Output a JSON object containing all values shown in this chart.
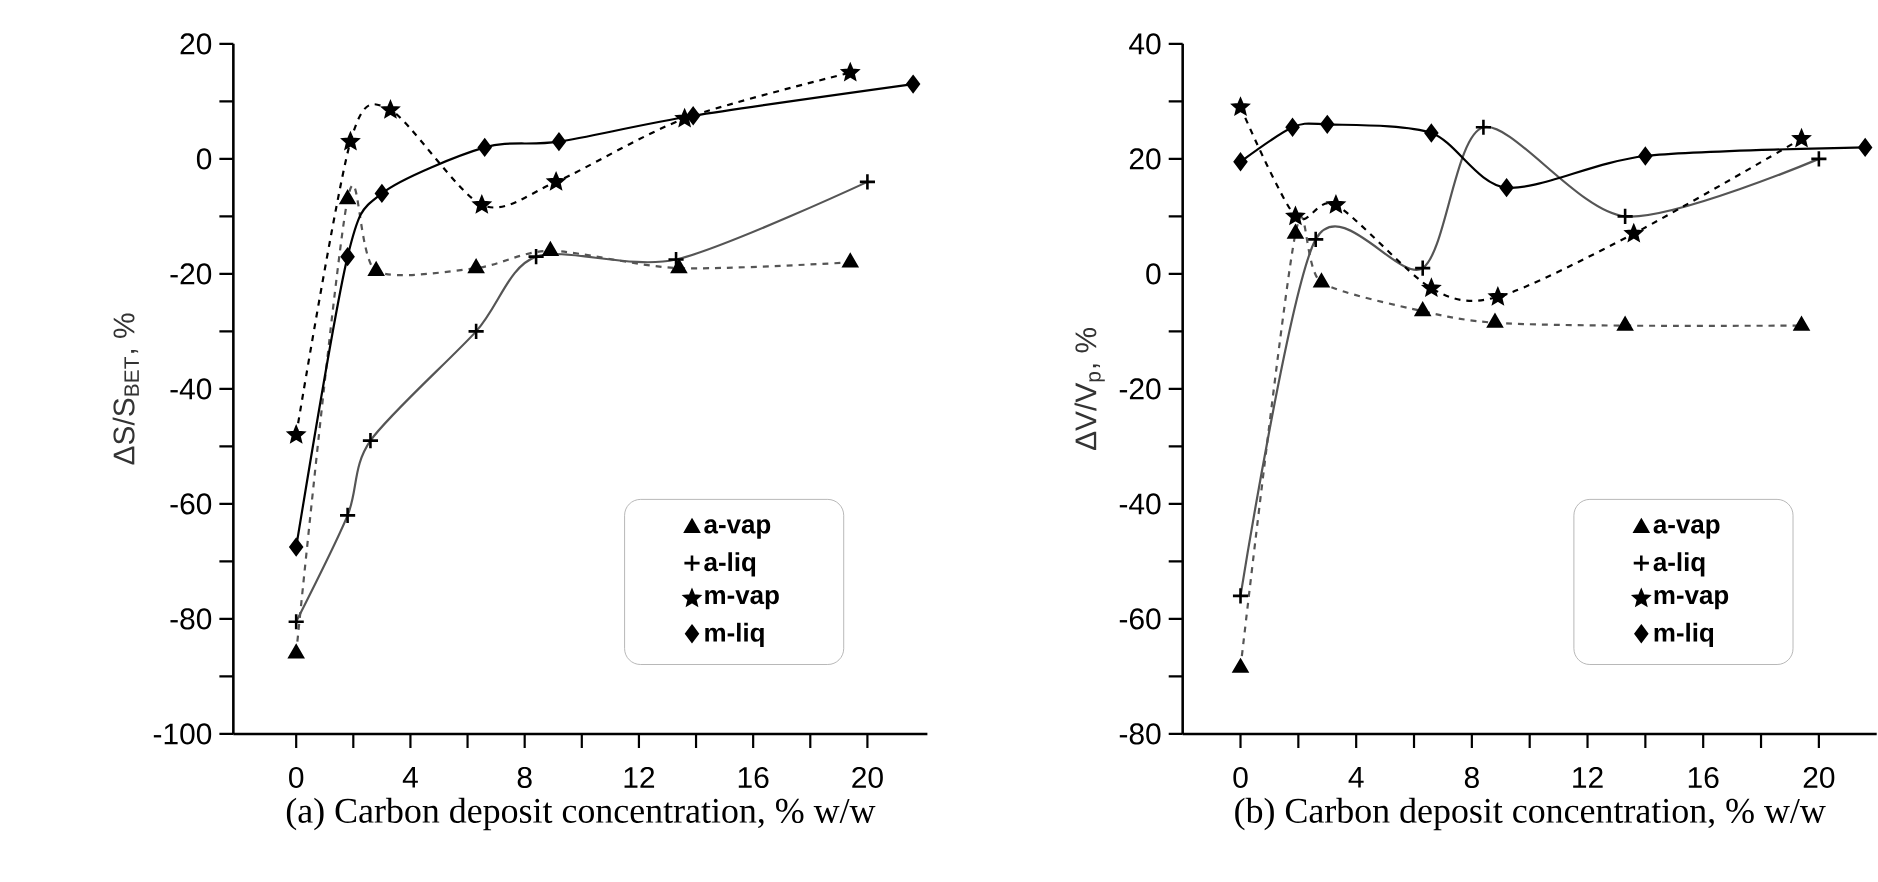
{
  "chart_data": [
    {
      "type": "line",
      "xlabel": "(a) Carbon deposit concentration, % w/w",
      "ylabel": "ΔS/S$_{BET}$, %",
      "xlim": [
        -2.2,
        22.1
      ],
      "ylim": [
        -100,
        20
      ],
      "xticks": [
        0,
        {
          "value": 2,
          "label": null
        },
        4,
        {
          "value": 6,
          "label": null
        },
        8,
        {
          "value": 10,
          "label": null
        },
        12,
        {
          "value": 14,
          "label": null
        },
        16,
        {
          "value": 18,
          "label": null
        },
        20
      ],
      "yticks": [
        -100,
        {
          "value": -90,
          "label": null
        },
        -80,
        {
          "value": -70,
          "label": null
        },
        -60,
        {
          "value": -50,
          "label": null
        },
        -40,
        {
          "value": -30,
          "label": null
        },
        -20,
        {
          "value": -10,
          "label": null
        },
        0,
        {
          "value": 10,
          "label": null
        },
        20
      ],
      "legend": "bottom right",
      "series": [
        {
          "name": "a-vap",
          "color": "#555555",
          "marker": "triangle",
          "line_style": "dashed",
          "x": [
            0,
            1.8,
            2.8,
            6.3,
            8.9,
            13.4,
            19.4
          ],
          "values": [
            -86,
            -7,
            -19.5,
            -19,
            -16,
            -19,
            -18
          ]
        },
        {
          "name": "a-liq",
          "color": "#555555",
          "marker": "cross",
          "line_style": "solid",
          "x": [
            0,
            1.8,
            2.6,
            6.3,
            8.4,
            13.3,
            20
          ],
          "values": [
            -80.5,
            -62,
            -49,
            -30,
            -17,
            -17.5,
            -4
          ]
        },
        {
          "name": "m-vap",
          "color": "#000000",
          "marker": "star",
          "line_style": "dashed",
          "x": [
            0,
            1.9,
            3.3,
            6.5,
            9.1,
            13.6,
            19.4
          ],
          "values": [
            -48,
            3,
            8.5,
            -8,
            -4,
            7,
            15
          ]
        },
        {
          "name": "m-liq",
          "color": "#000000",
          "marker": "diamond",
          "line_style": "solid",
          "x": [
            0,
            1.8,
            3.0,
            6.6,
            9.2,
            13.9,
            21.6
          ],
          "values": [
            -67.5,
            -17,
            -6,
            2,
            3,
            7.5,
            13
          ]
        }
      ]
    },
    {
      "type": "line",
      "xlabel": "(b) Carbon deposit concentration, % w/w",
      "ylabel": "ΔV/V$_{p}$, %",
      "xlim": [
        -2,
        22
      ],
      "ylim": [
        -80,
        40
      ],
      "xticks": [
        0,
        {
          "value": 2,
          "label": null
        },
        4,
        {
          "value": 6,
          "label": null
        },
        8,
        {
          "value": 10,
          "label": null
        },
        12,
        {
          "value": 14,
          "label": null
        },
        16,
        {
          "value": 18,
          "label": null
        },
        20
      ],
      "yticks": [
        -80,
        {
          "value": -70,
          "label": null
        },
        -60,
        {
          "value": -50,
          "label": null
        },
        -40,
        {
          "value": -30,
          "label": null
        },
        -20,
        {
          "value": -10,
          "label": null
        },
        0,
        {
          "value": 10,
          "label": null
        },
        20,
        {
          "value": 30,
          "label": null
        },
        40
      ],
      "legend": "bottom right",
      "series": [
        {
          "name": "a-vap",
          "color": "#555555",
          "marker": "triangle",
          "line_style": "dashed",
          "x": [
            0,
            1.9,
            2.8,
            6.3,
            8.8,
            13.3,
            19.4
          ],
          "values": [
            -68.5,
            7,
            -1.5,
            -6.5,
            -8.5,
            -9,
            -9
          ]
        },
        {
          "name": "a-liq",
          "color": "#555555",
          "marker": "cross",
          "line_style": "solid",
          "x": [
            0,
            1.8,
            2.6,
            6.3,
            8.4,
            13.3,
            20
          ],
          "values": [
            -56,
            null,
            6,
            1,
            25.5,
            10,
            20
          ]
        },
        {
          "name": "m-vap",
          "color": "#000000",
          "marker": "star",
          "line_style": "dashed",
          "x": [
            0,
            1.9,
            3.3,
            6.6,
            8.9,
            13.6,
            19.4
          ],
          "values": [
            29,
            10,
            12,
            -2.5,
            -4,
            7,
            23.5
          ]
        },
        {
          "name": "m-liq",
          "color": "#000000",
          "marker": "diamond",
          "line_style": "solid",
          "x": [
            0,
            1.8,
            3.0,
            6.6,
            9.2,
            14.0,
            21.6
          ],
          "values": [
            19.5,
            25.5,
            26,
            24.5,
            15,
            20.5,
            22
          ]
        }
      ]
    }
  ]
}
